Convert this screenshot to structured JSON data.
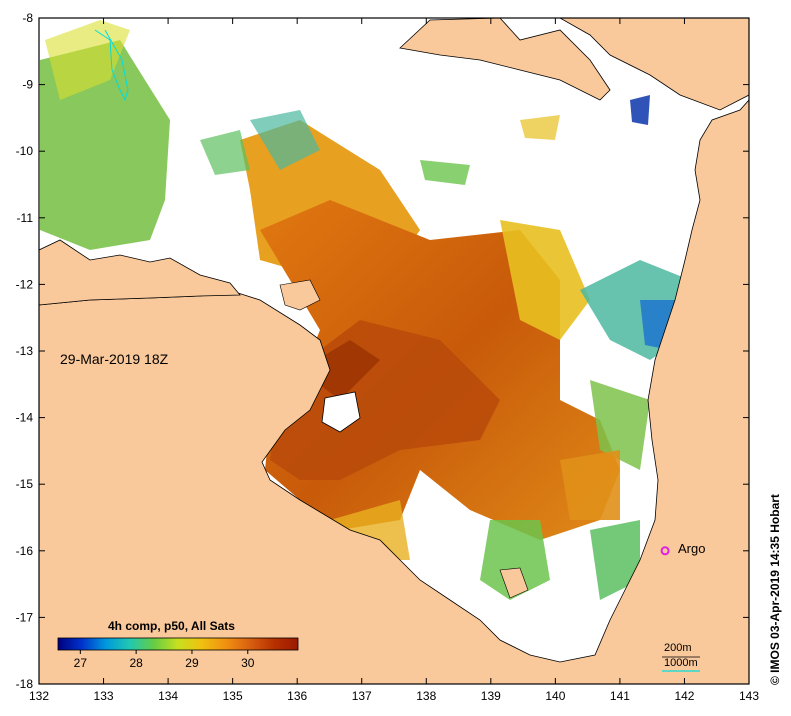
{
  "map": {
    "date_label": "29-Mar-2019 18Z",
    "x_ticks": [
      "132",
      "133",
      "134",
      "135",
      "136",
      "137",
      "138",
      "139",
      "140",
      "141",
      "142",
      "143"
    ],
    "y_ticks": [
      "-8",
      "-9",
      "-10",
      "-11",
      "-12",
      "-13",
      "-14",
      "-15",
      "-16",
      "-17",
      "-18"
    ],
    "lon_range": [
      132,
      143
    ],
    "lat_range": [
      -18,
      -8
    ],
    "land_color": "#f9c89b",
    "cloud_color": "#ffffff",
    "argo": {
      "label": "Argo",
      "color": "#e020e0",
      "lon": 141.7,
      "lat": -16.0
    },
    "depth_contours": {
      "shallow_label": "200m",
      "deep_label": "1000m",
      "deep_color": "#00dddd"
    }
  },
  "colorbar": {
    "title": "4h comp, p50, All Sats",
    "ticks": [
      "27",
      "28",
      "29",
      "30"
    ],
    "tick_values": [
      27,
      28,
      29,
      30
    ],
    "range": [
      26.6,
      30.9
    ],
    "colors": [
      "#00007f",
      "#0033cc",
      "#0099dd",
      "#22c8b0",
      "#66cc44",
      "#c8e020",
      "#f0c010",
      "#f09010",
      "#d86010",
      "#b83000",
      "#9a1a00"
    ]
  },
  "copyright": "© IMOS 03-Apr-2019 14:35 Hobart"
}
